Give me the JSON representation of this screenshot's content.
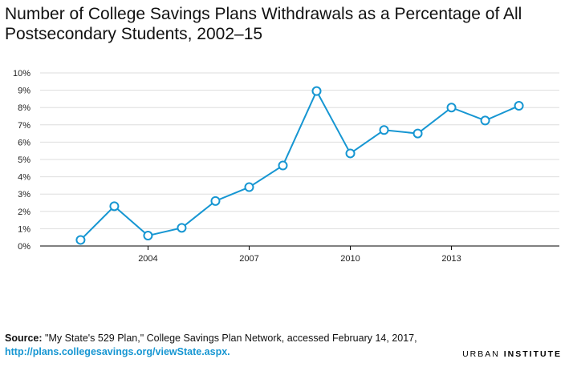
{
  "title": "Number of College Savings Plans Withdrawals as a Percentage of All Postsecondary Students, 2002–15",
  "source": {
    "lead": "Source:",
    "text": " \"My State's 529 Plan,\" College Savings Plan Network, accessed February 14, 2017,",
    "link": "http://plans.collegesavings.org/viewState.aspx."
  },
  "brand": {
    "part1": "URBAN ",
    "part2": "INSTITUTE"
  },
  "colors": {
    "line": "#1696d2",
    "gridline": "#dedede",
    "axis": "#000000"
  },
  "chart_data": {
    "type": "line",
    "title": "Number of College Savings Plans Withdrawals as a Percentage of All Postsecondary Students, 2002–15",
    "xlabel": "",
    "ylabel": "",
    "x": [
      2002,
      2003,
      2004,
      2005,
      2006,
      2007,
      2008,
      2009,
      2010,
      2011,
      2012,
      2013,
      2014,
      2015
    ],
    "xlim": [
      2000.8,
      2016.2
    ],
    "xticks": [
      2004,
      2007,
      2010,
      2013
    ],
    "ylim": [
      0,
      10
    ],
    "yticks": [
      0,
      1,
      2,
      3,
      4,
      5,
      6,
      7,
      8,
      9,
      10
    ],
    "ytick_labels": [
      "0%",
      "1%",
      "2%",
      "3%",
      "4%",
      "5%",
      "6%",
      "7%",
      "8%",
      "9%",
      "10%"
    ],
    "grid": true,
    "legend": "none",
    "series": [
      {
        "values": [
          0.35,
          2.3,
          0.6,
          1.05,
          2.6,
          3.4,
          4.65,
          8.95,
          5.35,
          6.7,
          6.5,
          8.0,
          7.25,
          8.1
        ]
      }
    ]
  }
}
